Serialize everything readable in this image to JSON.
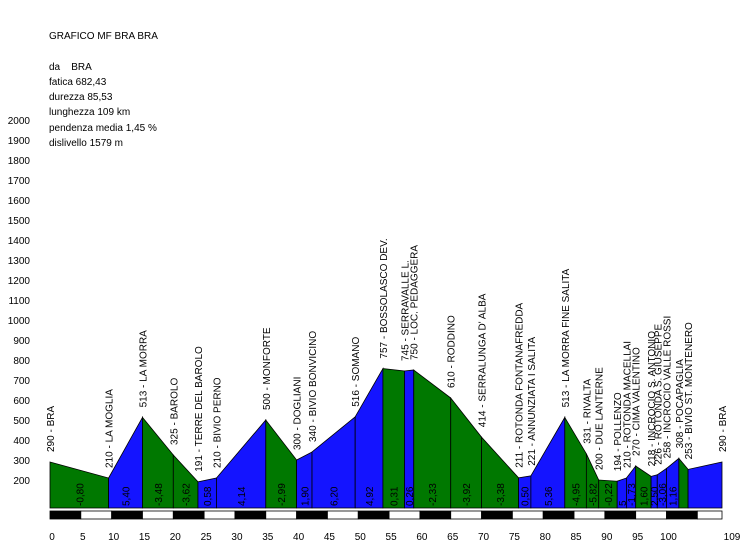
{
  "header": {
    "title": "GRAFICO MF BRA BRA",
    "from": "da    BRA",
    "fatica": "fatica 682,43",
    "durezza": "durezza 85,53",
    "lunghezza": "lunghezza 109 km",
    "pendenza": "pendenza media 1,45 %",
    "dislivello": "dislivello 1579 m"
  },
  "chart_data": {
    "type": "area",
    "title": "GRAFICO MF BRA BRA",
    "xlabel": "",
    "ylabel": "",
    "xlim": [
      0,
      109
    ],
    "ylim": [
      0,
      2000
    ],
    "y_ticks": [
      200,
      300,
      400,
      500,
      600,
      700,
      800,
      900,
      1000,
      1100,
      1200,
      1300,
      1400,
      1500,
      1600,
      1700,
      1800,
      1900,
      2000
    ],
    "x_ticks": [
      0,
      5,
      10,
      15,
      20,
      25,
      30,
      35,
      40,
      45,
      50,
      55,
      60,
      65,
      70,
      75,
      80,
      85,
      90,
      95,
      100,
      109
    ],
    "colors": {
      "climb": "#1414ff",
      "descent": "#007800",
      "bar_dark": "#000000",
      "bar_light": "#ffffff"
    },
    "points": [
      {
        "km": 0,
        "elev": 290,
        "label": "290 -   BRA"
      },
      {
        "km": 9.5,
        "elev": 210,
        "label": "210 - LA MOGLIA"
      },
      {
        "km": 15,
        "elev": 513,
        "label": "513 - LA MORRA"
      },
      {
        "km": 20,
        "elev": 325,
        "label": "325 - BAROLO"
      },
      {
        "km": 24,
        "elev": 191,
        "label": "191 - TERRE DEL BAROLO"
      },
      {
        "km": 27,
        "elev": 210,
        "label": "210 - BIVIO PERNO"
      },
      {
        "km": 35,
        "elev": 500,
        "label": "500 - MONFORTE"
      },
      {
        "km": 40,
        "elev": 300,
        "label": "300 - DOGLIANI"
      },
      {
        "km": 42.5,
        "elev": 340,
        "label": "340 - BIVIO BONVICINO"
      },
      {
        "km": 49.5,
        "elev": 516,
        "label": "516 - SOMANO"
      },
      {
        "km": 54,
        "elev": 757,
        "label": "757 - BOSSOLASCO DEV."
      },
      {
        "km": 57.5,
        "elev": 745,
        "label": "745 - SERRAVALLE L."
      },
      {
        "km": 59,
        "elev": 750,
        "label": "750 - LOC. PEDAGGERA"
      },
      {
        "km": 65,
        "elev": 610,
        "label": "610 - RODDINO"
      },
      {
        "km": 70,
        "elev": 414,
        "label": "414 - SERRALUNGA D' ALBA"
      },
      {
        "km": 76,
        "elev": 211,
        "label": "211 - ROTONDA FONTANAFREDDA"
      },
      {
        "km": 78,
        "elev": 221,
        "label": "221 - ANNUNZIATA I SALITA"
      },
      {
        "km": 83.5,
        "elev": 513,
        "label": "513 - LA MORRA FINE SALITA"
      },
      {
        "km": 87,
        "elev": 331,
        "label": "331 - RIVALTA"
      },
      {
        "km": 89,
        "elev": 200,
        "label": "200 - DUE LANTERNE"
      },
      {
        "km": 92,
        "elev": 194,
        "label": "194 - POLLENZO"
      },
      {
        "km": 93.5,
        "elev": 210,
        "label": "210 - ROTONDA MACELLAI"
      },
      {
        "km": 95,
        "elev": 270,
        "label": "270 - CIMA VALENTINO"
      },
      {
        "km": 97.5,
        "elev": 218,
        "label": "218 - INCROCIO S. ANTONIO"
      },
      {
        "km": 98.5,
        "elev": 226,
        "label": "226 - ROTONDA S. GIUSEPPE"
      },
      {
        "km": 100,
        "elev": 258,
        "label": "258 - INCROCIO VALLE ROSSI"
      },
      {
        "km": 102,
        "elev": 308,
        "label": "308 - POCAPAGLIA"
      },
      {
        "km": 103.5,
        "elev": 253,
        "label": "253 - BIVIO ST. MONTENERO"
      },
      {
        "km": 109,
        "elev": 290,
        "label": "290 -  BRA"
      }
    ],
    "slopes": [
      "-0,80",
      "5,40",
      "-3,48",
      "-3,62",
      "0,58",
      "4,14",
      "-2,99",
      "1,90",
      "6,20",
      "4,92",
      "0,31",
      "0,26",
      "-2,33",
      "-3,92",
      "-3,38",
      "0,50",
      "5,36",
      "-4,95",
      "-5,82",
      "-0,22",
      "5",
      "-1,73",
      "1,60",
      "2,50",
      "-3,06",
      "1,16"
    ]
  }
}
